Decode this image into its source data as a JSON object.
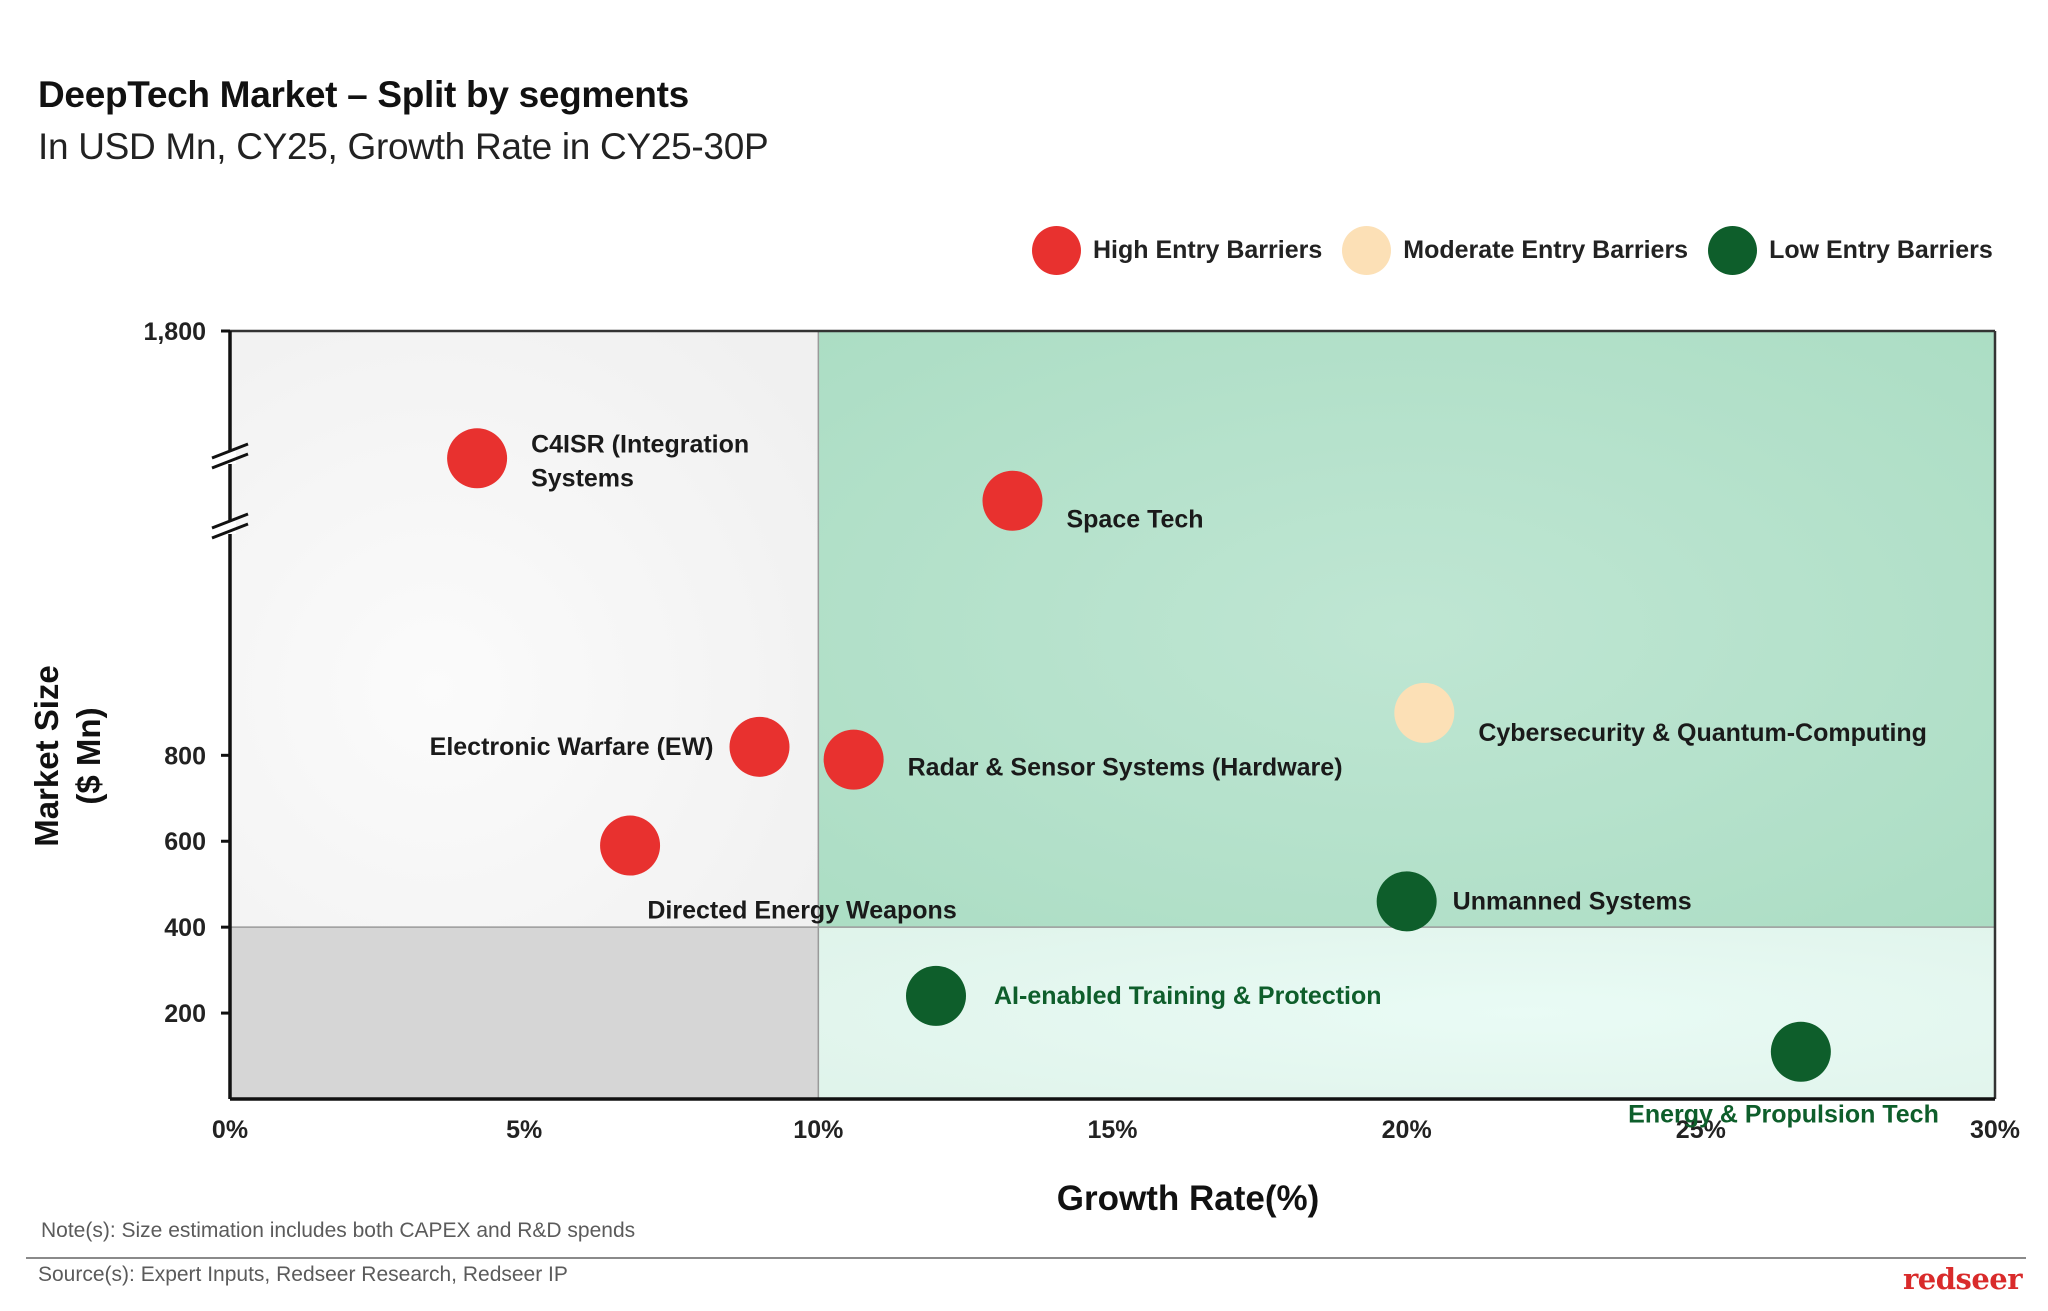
{
  "header": {
    "title": "DeepTech Market – Split by segments",
    "subtitle": "In USD Mn, CY25, Growth Rate in CY25-30P"
  },
  "legend": [
    {
      "label": "High Entry Barriers",
      "color": "#e8312f",
      "key": "high"
    },
    {
      "label": "Moderate Entry Barriers",
      "color": "#fce0b6",
      "key": "moderate"
    },
    {
      "label": "Low Entry Barriers",
      "color": "#0e5e2b",
      "key": "low"
    }
  ],
  "chart_data": {
    "type": "scatter",
    "xlabel": "Growth Rate(%)",
    "ylabel_lines": [
      "Market Size",
      "($ Mn)"
    ],
    "xlim": [
      0,
      30
    ],
    "x_ticks": [
      0,
      5,
      10,
      15,
      20,
      25,
      30
    ],
    "x_tick_labels": [
      "0%",
      "5%",
      "10%",
      "15%",
      "20%",
      "25%",
      "30%"
    ],
    "y_ticks": [
      200,
      400,
      600,
      800,
      1800
    ],
    "y_tick_labels": [
      "200",
      "400",
      "600",
      "800",
      "1,800"
    ],
    "y_axis_break": "between 800 and 1,800",
    "quadrant_split": {
      "x": 10,
      "y": 400
    },
    "points": [
      {
        "name": "C4ISR (Integration Systems",
        "label_lines": [
          "C4ISR (Integration",
          "Systems"
        ],
        "x": 4.2,
        "y": 1500,
        "barrier": "high"
      },
      {
        "name": "Space Tech",
        "label_lines": [
          "Space Tech"
        ],
        "x": 13.3,
        "y": 1400,
        "barrier": "high"
      },
      {
        "name": "Cybersecurity & Quantum-Computing",
        "label_lines": [
          "Cybersecurity & Quantum-Computing"
        ],
        "x": 20.3,
        "y": 900,
        "barrier": "moderate"
      },
      {
        "name": "Electronic Warfare (EW)",
        "label_lines": [
          "Electronic Warfare (EW)"
        ],
        "x": 9,
        "y": 820,
        "barrier": "high"
      },
      {
        "name": "Radar & Sensor Systems (Hardware)",
        "label_lines": [
          "Radar & Sensor Systems (Hardware)"
        ],
        "x": 10.6,
        "y": 790,
        "barrier": "high"
      },
      {
        "name": "Directed Energy Weapons",
        "label_lines": [
          "Directed Energy Weapons"
        ],
        "x": 6.8,
        "y": 590,
        "barrier": "high"
      },
      {
        "name": "Unmanned Systems",
        "label_lines": [
          "Unmanned Systems"
        ],
        "x": 20,
        "y": 460,
        "barrier": "low"
      },
      {
        "name": "AI-enabled Training & Protection",
        "label_lines": [
          "AI-enabled Training & Protection"
        ],
        "x": 12,
        "y": 240,
        "barrier": "low"
      },
      {
        "name": "Energy & Propulsion Tech",
        "label_lines": [
          "Energy & Propulsion Tech"
        ],
        "x": 26.7,
        "y": 110,
        "barrier": "low"
      }
    ]
  },
  "footer": {
    "note": "Note(s): Size estimation includes both CAPEX and R&D spends",
    "source": "Source(s): Expert Inputs, Redseer Research, Redseer IP",
    "brand": "redseer"
  }
}
